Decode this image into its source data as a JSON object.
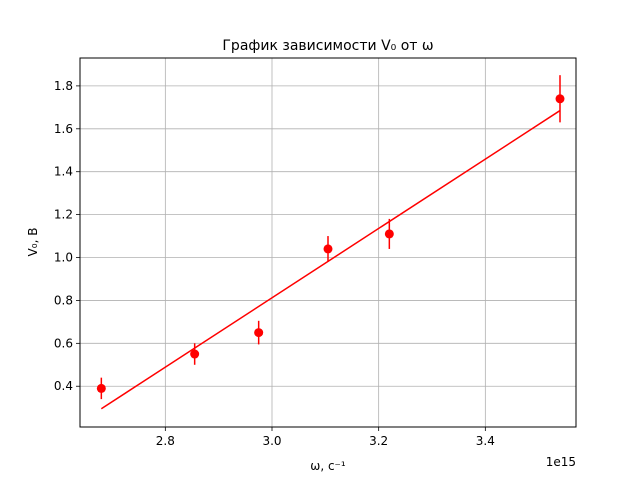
{
  "chart_data": {
    "type": "scatter",
    "title": "График зависимости V₀ от ω",
    "xlabel": "ω, c⁻¹",
    "ylabel": "V₀, В",
    "x_offset_label": "1e15",
    "xlim": [
      2.64,
      3.57
    ],
    "ylim": [
      0.21,
      1.93
    ],
    "xticks": [
      2.8,
      3.0,
      3.2,
      3.4
    ],
    "xtick_labels": [
      "2.8",
      "3.0",
      "3.2",
      "3.4"
    ],
    "yticks": [
      0.4,
      0.6,
      0.8,
      1.0,
      1.2,
      1.4,
      1.6,
      1.8
    ],
    "ytick_labels": [
      "0.4",
      "0.6",
      "0.8",
      "1.0",
      "1.2",
      "1.4",
      "1.6",
      "1.8"
    ],
    "grid": true,
    "color": "#ff0000",
    "points": [
      {
        "x": 2.68,
        "y": 0.39,
        "yerr": 0.05
      },
      {
        "x": 2.855,
        "y": 0.55,
        "yerr": 0.05
      },
      {
        "x": 2.975,
        "y": 0.65,
        "yerr": 0.055
      },
      {
        "x": 3.105,
        "y": 1.04,
        "yerr": 0.06
      },
      {
        "x": 3.22,
        "y": 1.11,
        "yerr": 0.07
      },
      {
        "x": 3.54,
        "y": 1.74,
        "yerr": 0.11
      }
    ],
    "fit_line": {
      "x": [
        2.68,
        3.54
      ],
      "y": [
        0.295,
        1.685
      ]
    }
  }
}
